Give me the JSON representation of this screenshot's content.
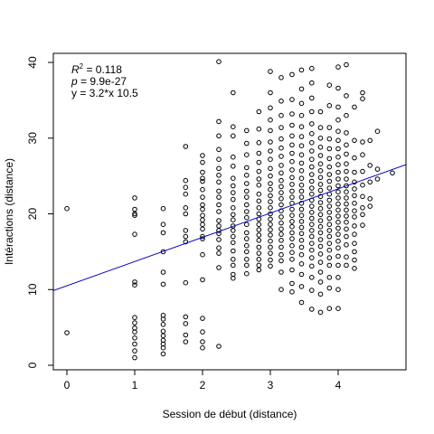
{
  "chart_data": {
    "type": "scatter",
    "title": "",
    "xlabel": "Session de début (distance)",
    "ylabel": "Intéractions (distance)",
    "xlim": [
      -0.2,
      5.0
    ],
    "ylim": [
      -0.6,
      41.2
    ],
    "x_ticks": [
      "0",
      "1",
      "2",
      "3",
      "4"
    ],
    "y_ticks": [
      "0",
      "10",
      "20",
      "30",
      "40"
    ],
    "grid": false,
    "annotations": {
      "r2_symbol": "R",
      "r2_power": "2",
      "r2_value": " = 0.118",
      "p_symbol": "p",
      "p_value": " = 9.9e-27",
      "equation": "y = 3.2*x 10.5"
    },
    "regression": {
      "slope": 3.2,
      "intercept": 10.5,
      "color": "#0000cc"
    },
    "point_color": "#000000",
    "columns": [
      {
        "x": 0.0,
        "y": [
          20.7,
          4.3
        ]
      },
      {
        "x": 1.0,
        "y": [
          22.1,
          20.6,
          20.0,
          19.8,
          17.3,
          11.0,
          10.6,
          6.3,
          5.6,
          4.9,
          4.4,
          3.6,
          2.8,
          1.9,
          1.0
        ]
      },
      {
        "x": 1.42,
        "y": [
          20.7,
          18.6,
          17.5,
          15.0,
          12.3,
          10.7,
          6.6,
          6.1,
          5.4,
          4.5,
          3.9,
          3.3,
          2.8,
          2.3,
          1.5
        ]
      },
      {
        "x": 1.75,
        "y": [
          28.9,
          24.4,
          23.5,
          22.6,
          20.8,
          20.0,
          17.8,
          17.0,
          16.3,
          10.9,
          6.4,
          5.5,
          4.0,
          3.1
        ]
      },
      {
        "x": 2.0,
        "y": [
          27.7,
          26.8,
          25.5,
          24.7,
          24.3,
          23.2,
          22.2,
          21.2,
          20.6,
          19.8,
          19.2,
          18.6,
          18.0,
          17.0,
          16.7,
          14.6,
          11.3,
          6.2,
          4.4,
          3.1,
          2.3
        ]
      },
      {
        "x": 2.24,
        "y": [
          40.1,
          32.2,
          30.3,
          28.5,
          27.2,
          26.0,
          25.1,
          24.2,
          23.0,
          22.2,
          21.2,
          20.3,
          19.1,
          18.4,
          17.8,
          17.4,
          16.6,
          15.5,
          14.8,
          12.9,
          2.5
        ]
      },
      {
        "x": 2.45,
        "y": [
          36.0,
          31.5,
          30.3,
          27.5,
          26.3,
          24.7,
          23.7,
          22.8,
          21.9,
          20.8,
          19.9,
          19.2,
          18.4,
          17.8,
          17.0,
          16.2,
          15.1,
          14.0,
          13.2,
          12.0,
          11.5
        ]
      },
      {
        "x": 2.65,
        "y": [
          31.0,
          29.3,
          27.8,
          26.1,
          25.1,
          24.0,
          23.0,
          22.2,
          21.2,
          20.3,
          19.5,
          18.6,
          17.5,
          16.7,
          15.8,
          15.0,
          14.0,
          13.2,
          12.1
        ]
      },
      {
        "x": 2.83,
        "y": [
          33.5,
          31.2,
          29.4,
          28.0,
          26.8,
          25.6,
          24.6,
          23.8,
          22.6,
          21.7,
          20.8,
          20.0,
          19.3,
          18.6,
          17.9,
          17.2,
          16.5,
          15.6,
          14.8,
          14.0,
          13.2,
          12.6
        ]
      },
      {
        "x": 3.0,
        "y": [
          38.8,
          36.0,
          34.0,
          32.4,
          31.0,
          29.5,
          28.3,
          27.2,
          26.0,
          25.0,
          24.0,
          23.2,
          22.4,
          21.6,
          20.8,
          20.0,
          19.3,
          18.6,
          17.9,
          17.2,
          16.4,
          15.6,
          14.8,
          13.9,
          13.1
        ]
      },
      {
        "x": 3.16,
        "y": [
          38.0,
          34.9,
          33.0,
          31.4,
          29.9,
          28.7,
          27.6,
          26.4,
          25.4,
          24.4,
          23.6,
          22.8,
          22.0,
          21.2,
          20.4,
          19.6,
          18.8,
          18.0,
          17.3,
          16.5,
          15.6,
          14.6,
          13.8,
          12.3,
          10.0
        ]
      },
      {
        "x": 3.32,
        "y": [
          38.4,
          35.1,
          33.2,
          31.7,
          30.3,
          29.1,
          28.0,
          26.9,
          25.8,
          24.8,
          23.9,
          23.0,
          22.2,
          21.4,
          20.6,
          19.8,
          19.0,
          18.3,
          17.5,
          16.7,
          15.8,
          14.9,
          14.0,
          12.6,
          10.8,
          9.7
        ]
      },
      {
        "x": 3.46,
        "y": [
          39.0,
          36.5,
          34.6,
          33.0,
          31.5,
          30.2,
          29.0,
          27.8,
          26.7,
          25.7,
          24.7,
          23.8,
          23.0,
          22.2,
          21.4,
          20.6,
          19.8,
          19.0,
          18.2,
          17.4,
          16.5,
          15.6,
          14.6,
          13.4,
          12.0,
          10.4,
          8.3
        ]
      },
      {
        "x": 3.61,
        "y": [
          39.2,
          37.3,
          35.3,
          33.5,
          31.9,
          30.6,
          29.4,
          28.3,
          27.2,
          26.2,
          25.2,
          24.3,
          23.4,
          22.6,
          21.8,
          21.0,
          20.2,
          19.4,
          18.6,
          17.8,
          17.0,
          16.1,
          15.2,
          14.2,
          13.1,
          11.6,
          9.9,
          7.4
        ]
      },
      {
        "x": 3.74,
        "y": [
          33.5,
          31.4,
          30.0,
          28.8,
          27.7,
          26.6,
          25.7,
          24.8,
          23.9,
          23.1,
          22.3,
          21.5,
          20.7,
          19.9,
          19.1,
          18.3,
          17.5,
          16.6,
          15.7,
          14.7,
          13.6,
          12.3,
          11.0,
          9.4,
          7.0
        ]
      },
      {
        "x": 3.87,
        "y": [
          37.0,
          34.3,
          31.4,
          29.9,
          28.6,
          27.3,
          26.2,
          25.2,
          24.3,
          23.4,
          22.6,
          21.8,
          21.0,
          20.2,
          19.4,
          18.6,
          17.8,
          17.0,
          16.1,
          15.2,
          14.2,
          13.2,
          11.6,
          10.2,
          7.5
        ]
      },
      {
        "x": 4.0,
        "y": [
          39.4,
          36.6,
          34.1,
          32.4,
          30.9,
          29.7,
          28.6,
          27.5,
          26.5,
          25.5,
          24.6,
          23.7,
          22.9,
          22.1,
          21.3,
          20.5,
          19.7,
          18.9,
          18.1,
          17.3,
          16.4,
          15.5,
          14.4,
          13.2,
          11.6,
          10.0,
          7.5
        ]
      },
      {
        "x": 4.12,
        "y": [
          39.7,
          35.6,
          33.0,
          30.7,
          29.1,
          27.9,
          26.6,
          25.6,
          24.6,
          23.7,
          22.9,
          22.1,
          21.3,
          20.5,
          19.7,
          18.9,
          18.0,
          17.0,
          15.9,
          14.3,
          13.2
        ]
      },
      {
        "x": 4.24,
        "y": [
          34.1,
          29.7,
          27.4,
          25.5,
          24.2,
          23.3,
          22.4,
          21.4,
          20.4,
          19.6,
          18.4,
          17.3,
          16.1,
          15.0,
          13.9,
          12.8
        ]
      },
      {
        "x": 4.36,
        "y": [
          36.0,
          35.2,
          29.5,
          27.8,
          25.6,
          23.8,
          22.3,
          20.8,
          19.9,
          18.5
        ]
      },
      {
        "x": 4.47,
        "y": [
          29.7,
          26.4,
          24.2,
          22.0,
          21.0
        ]
      },
      {
        "x": 4.58,
        "y": [
          30.9,
          25.9,
          24.6
        ]
      },
      {
        "x": 4.8,
        "y": [
          25.4
        ]
      }
    ]
  }
}
